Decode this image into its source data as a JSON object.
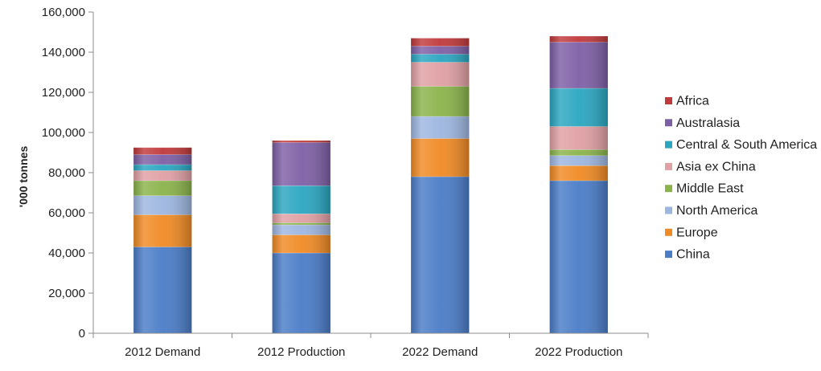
{
  "chart_data": {
    "type": "bar",
    "stacked": true,
    "title": "",
    "xlabel": "",
    "ylabel": "'000 tonnes",
    "ylim": [
      0,
      160000
    ],
    "y_ticks": [
      {
        "value": 0,
        "label": "0"
      },
      {
        "value": 20000,
        "label": "20,000"
      },
      {
        "value": 40000,
        "label": "40,000"
      },
      {
        "value": 60000,
        "label": "60,000"
      },
      {
        "value": 80000,
        "label": "80,000"
      },
      {
        "value": 100000,
        "label": "100,000"
      },
      {
        "value": 120000,
        "label": "120,000"
      },
      {
        "value": 140000,
        "label": "140,000"
      },
      {
        "value": 160000,
        "label": "160,000"
      }
    ],
    "grid": false,
    "legend_position": "right",
    "categories": [
      "2012 Demand",
      "2012 Production",
      "2022 Demand",
      "2022 Production"
    ],
    "series": [
      {
        "name": "China",
        "color": "#4a7cc7",
        "values": [
          43000,
          40000,
          78000,
          76000
        ]
      },
      {
        "name": "Europe",
        "color": "#f08a24",
        "values": [
          16000,
          9000,
          19000,
          7500
        ]
      },
      {
        "name": "North America",
        "color": "#9db6e0",
        "values": [
          9500,
          5000,
          11000,
          5000
        ]
      },
      {
        "name": "Middle East",
        "color": "#8ab34a",
        "values": [
          7500,
          1000,
          15000,
          3000
        ]
      },
      {
        "name": "Asia ex China",
        "color": "#e0a0a4",
        "values": [
          5000,
          4500,
          12000,
          11500
        ]
      },
      {
        "name": "Central & South America",
        "color": "#2aa6c0",
        "values": [
          3000,
          14000,
          4000,
          19000
        ]
      },
      {
        "name": "Australasia",
        "color": "#7e5fa5",
        "values": [
          5000,
          21500,
          4000,
          23000
        ]
      },
      {
        "name": "Africa",
        "color": "#c0393b",
        "values": [
          3500,
          1000,
          4000,
          3000
        ]
      }
    ]
  }
}
